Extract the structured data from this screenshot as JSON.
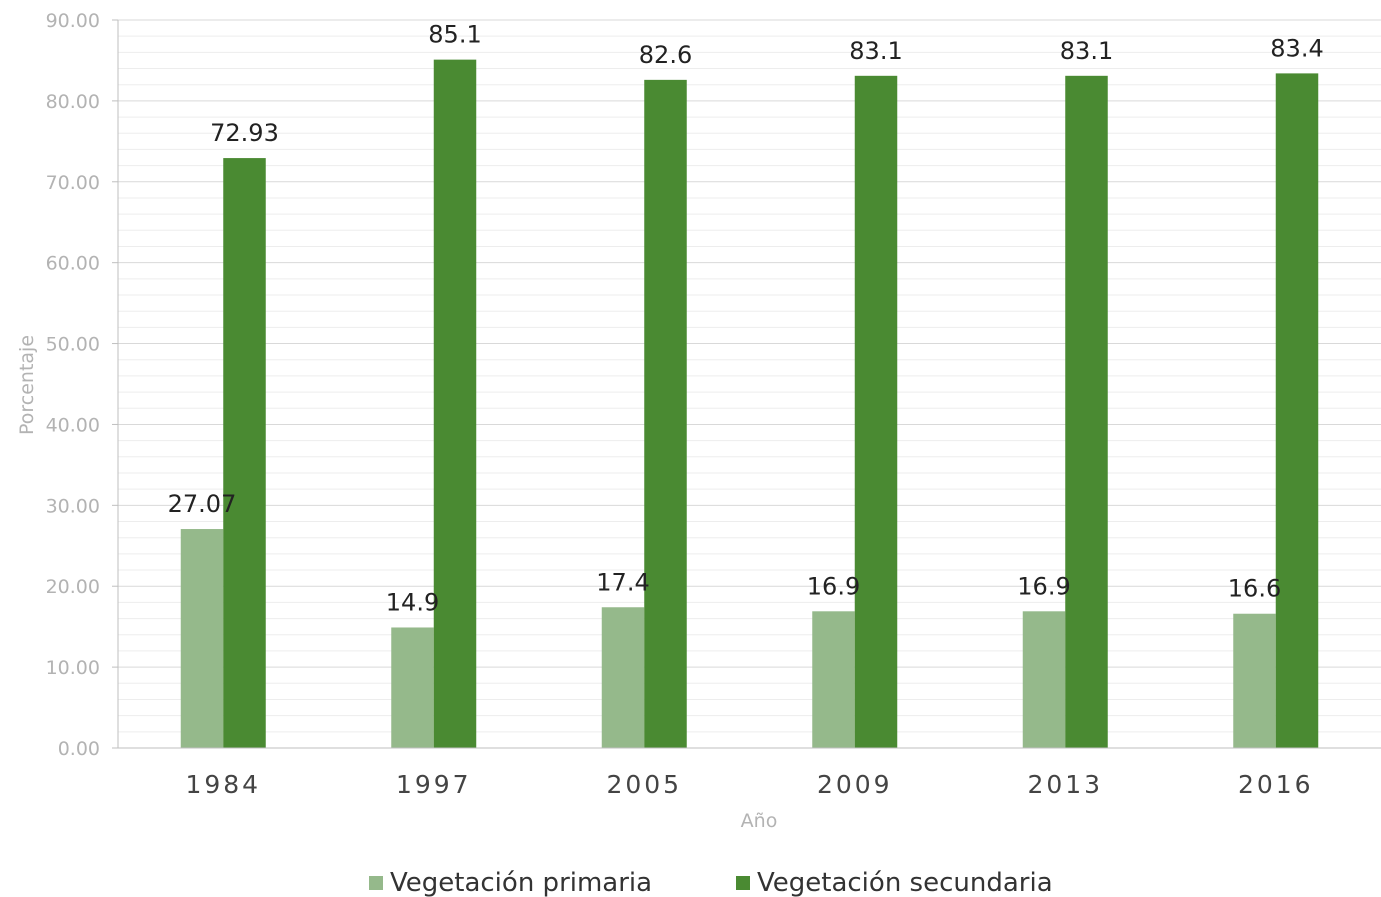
{
  "chart_data": {
    "type": "bar",
    "categories": [
      "1984",
      "1997",
      "2005",
      "2009",
      "2013",
      "2016"
    ],
    "series": [
      {
        "name": "Vegetación primaria",
        "values": [
          27.07,
          14.9,
          17.4,
          16.9,
          16.9,
          16.6
        ],
        "labels": [
          "27.07",
          "14.9",
          "17.4",
          "16.9",
          "16.9",
          "16.6"
        ],
        "color": "#95b98b"
      },
      {
        "name": "Vegetación secundaria",
        "values": [
          72.93,
          85.1,
          82.6,
          83.1,
          83.1,
          83.4
        ],
        "labels": [
          "72.93",
          "85.1",
          "82.6",
          "83.1",
          "83.1",
          "83.4"
        ],
        "color": "#4a8a32"
      }
    ],
    "xlabel": "Año",
    "ylabel": "Porcentaje",
    "ylim": [
      0,
      90
    ],
    "yticks": [
      "0.00",
      "10.00",
      "20.00",
      "30.00",
      "40.00",
      "50.00",
      "60.00",
      "70.00",
      "80.00",
      "90.00"
    ],
    "grid": true,
    "legend_position": "bottom"
  }
}
